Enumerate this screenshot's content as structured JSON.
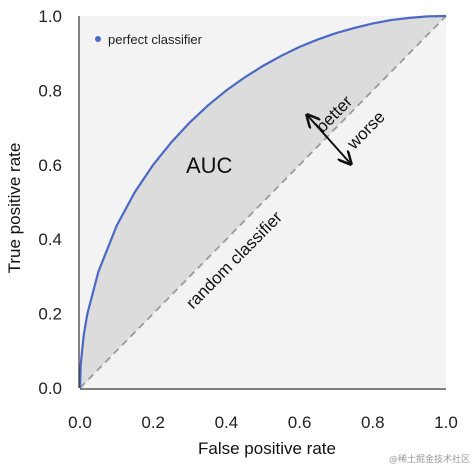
{
  "chart_data": {
    "type": "area",
    "xlabel": "False positive rate",
    "ylabel": "True positive rate",
    "xlim": [
      0.0,
      1.0
    ],
    "ylim": [
      0.0,
      1.0
    ],
    "xticks": [
      "0.0",
      "0.2",
      "0.4",
      "0.6",
      "0.8",
      "1.0"
    ],
    "yticks": [
      "0.0",
      "0.2",
      "0.4",
      "0.6",
      "0.8",
      "1.0"
    ],
    "series": [
      {
        "name": "perfect classifier",
        "color": "#4c68c7",
        "x": [
          0.0,
          0.002,
          0.01,
          0.02,
          0.05,
          0.1,
          0.15,
          0.2,
          0.25,
          0.3,
          0.35,
          0.4,
          0.45,
          0.5,
          0.55,
          0.6,
          0.65,
          0.7,
          0.75,
          0.8,
          0.85,
          0.9,
          0.95,
          1.0
        ],
        "y": [
          0.0,
          0.063,
          0.141,
          0.199,
          0.312,
          0.436,
          0.527,
          0.6,
          0.661,
          0.714,
          0.76,
          0.8,
          0.835,
          0.866,
          0.893,
          0.917,
          0.937,
          0.954,
          0.968,
          0.98,
          0.989,
          0.995,
          0.999,
          1.0
        ]
      },
      {
        "role": "diagonal",
        "color": "#9a9a9a",
        "x": [
          0.0,
          1.0
        ],
        "y": [
          0.0,
          1.0
        ]
      }
    ],
    "legend": {
      "position": "top-left"
    },
    "annotations": {
      "area_label": "AUC",
      "diagonal_label": "random classifier",
      "better": "better",
      "worse": "worse"
    },
    "fill_color": "#dcdcdc",
    "plot_background": "#f3f3f3",
    "grid": false
  },
  "watermark": "@稀土掘金技术社区"
}
